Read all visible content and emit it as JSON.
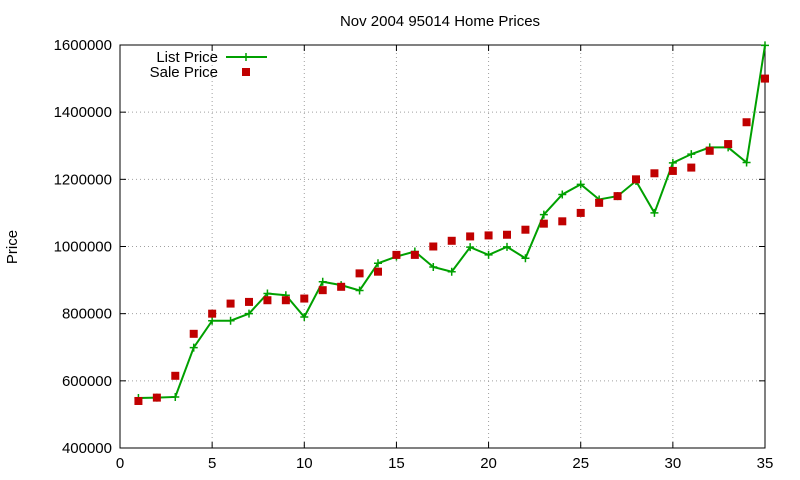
{
  "chart_data": {
    "type": "line",
    "title": "Nov 2004 95014 Home Prices",
    "xlabel": "",
    "ylabel": "Price",
    "xlim": [
      0,
      35
    ],
    "ylim": [
      400000,
      1600000
    ],
    "x_ticks": [
      0,
      5,
      10,
      15,
      20,
      25,
      30,
      35
    ],
    "y_ticks": [
      400000,
      600000,
      800000,
      1000000,
      1200000,
      1400000,
      1600000
    ],
    "grid": true,
    "legend_position": "top-left",
    "series": [
      {
        "name": "List Price",
        "style": "lines+points",
        "color": "#00a000",
        "marker": "plus",
        "x": [
          1,
          2,
          3,
          4,
          5,
          6,
          7,
          8,
          9,
          10,
          11,
          12,
          13,
          14,
          15,
          16,
          17,
          18,
          19,
          20,
          21,
          22,
          23,
          24,
          25,
          26,
          27,
          28,
          29,
          30,
          31,
          32,
          33,
          34,
          35
        ],
        "y": [
          549000,
          550000,
          552000,
          699000,
          779000,
          779000,
          800000,
          860000,
          855000,
          790000,
          895000,
          885000,
          869000,
          950000,
          970000,
          985000,
          939000,
          925000,
          998000,
          975000,
          999000,
          965000,
          1095000,
          1155000,
          1185000,
          1140000,
          1150000,
          1195000,
          1100000,
          1249000,
          1275000,
          1295000,
          1295000,
          1250000,
          1599000
        ]
      },
      {
        "name": "Sale Price",
        "style": "points",
        "color": "#c00000",
        "marker": "square",
        "x": [
          1,
          2,
          3,
          4,
          5,
          6,
          7,
          8,
          9,
          10,
          11,
          12,
          13,
          14,
          15,
          16,
          17,
          18,
          19,
          20,
          21,
          22,
          23,
          24,
          25,
          26,
          27,
          28,
          29,
          30,
          31,
          32,
          33,
          34,
          35
        ],
        "y": [
          540000,
          550000,
          615000,
          740000,
          800000,
          830000,
          835000,
          840000,
          840000,
          845000,
          870000,
          880000,
          920000,
          925000,
          975000,
          975000,
          1000000,
          1017000,
          1030000,
          1033000,
          1035000,
          1050000,
          1068000,
          1075000,
          1100000,
          1130000,
          1150000,
          1200000,
          1218000,
          1225000,
          1235000,
          1285000,
          1305000,
          1370000,
          1500000
        ]
      }
    ]
  }
}
